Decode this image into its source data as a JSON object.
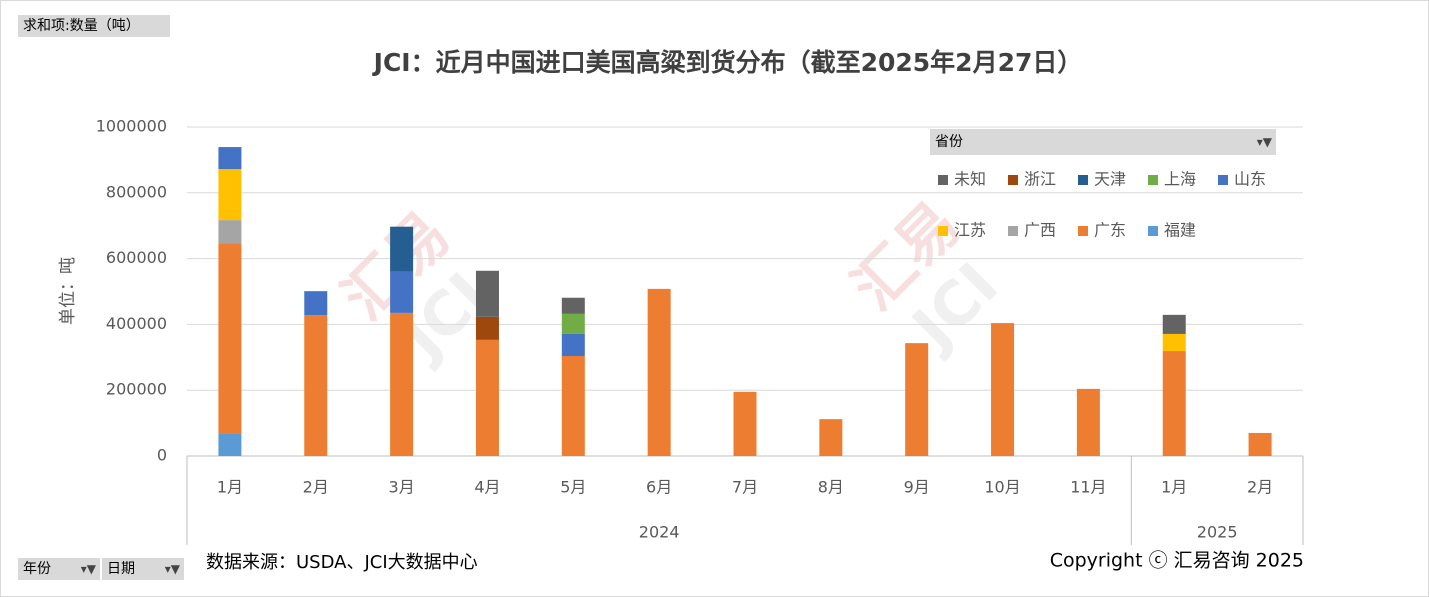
{
  "chart_data": {
    "type": "bar",
    "stacked": true,
    "title": "JCI：近月中国进口美国高粱到货分布（截至2025年2月27日）",
    "y_label": "单位：吨",
    "value_field": "求和项:数量（吨）",
    "legend_title": "省份",
    "filters": [
      "年份",
      "日期"
    ],
    "source": "数据来源：USDA、JCI大数据中心",
    "copyright": "Copyright ⓒ 汇易咨询 2025",
    "watermark": [
      "汇易",
      "JCI"
    ],
    "category_groups": [
      {
        "label": "2024",
        "categories": [
          "1月",
          "2月",
          "3月",
          "4月",
          "5月",
          "6月",
          "7月",
          "8月",
          "9月",
          "10月",
          "11月"
        ]
      },
      {
        "label": "2025",
        "categories": [
          "1月",
          "2月"
        ]
      }
    ],
    "ylim": [
      0,
      1000000
    ],
    "yticks": [
      0,
      200000,
      400000,
      600000,
      800000,
      1000000
    ],
    "grid": true,
    "legend": "top-right",
    "series": [
      {
        "name": "福建",
        "color": "#5b9bd5",
        "values": [
          67000,
          null,
          null,
          null,
          null,
          null,
          null,
          null,
          null,
          null,
          null,
          null,
          null
        ]
      },
      {
        "name": "广东",
        "color": "#ed7d31",
        "values": [
          580000,
          428000,
          435000,
          353000,
          304000,
          508000,
          195000,
          112000,
          343000,
          404000,
          204000,
          319000,
          70000
        ]
      },
      {
        "name": "广西",
        "color": "#a5a5a5",
        "values": [
          70000,
          null,
          null,
          null,
          null,
          null,
          null,
          null,
          null,
          null,
          null,
          null,
          null
        ]
      },
      {
        "name": "江苏",
        "color": "#ffc000",
        "values": [
          155000,
          null,
          null,
          null,
          null,
          null,
          null,
          null,
          null,
          null,
          null,
          52000,
          null
        ]
      },
      {
        "name": "山东",
        "color": "#4472c4",
        "values": [
          67000,
          73000,
          125000,
          null,
          67000,
          null,
          null,
          null,
          null,
          null,
          null,
          null,
          null
        ]
      },
      {
        "name": "上海",
        "color": "#70ad47",
        "values": [
          null,
          null,
          null,
          null,
          61000,
          null,
          null,
          null,
          null,
          null,
          null,
          null,
          null
        ]
      },
      {
        "name": "天津",
        "color": "#255e91",
        "values": [
          null,
          null,
          137000,
          null,
          null,
          null,
          null,
          null,
          null,
          null,
          null,
          null,
          null
        ]
      },
      {
        "name": "浙江",
        "color": "#9e480e",
        "values": [
          null,
          null,
          null,
          70000,
          null,
          null,
          null,
          null,
          null,
          null,
          null,
          null,
          null
        ]
      },
      {
        "name": "未知",
        "color": "#636363",
        "values": [
          null,
          null,
          null,
          140000,
          49000,
          null,
          null,
          null,
          null,
          null,
          null,
          58000,
          null
        ]
      }
    ]
  }
}
